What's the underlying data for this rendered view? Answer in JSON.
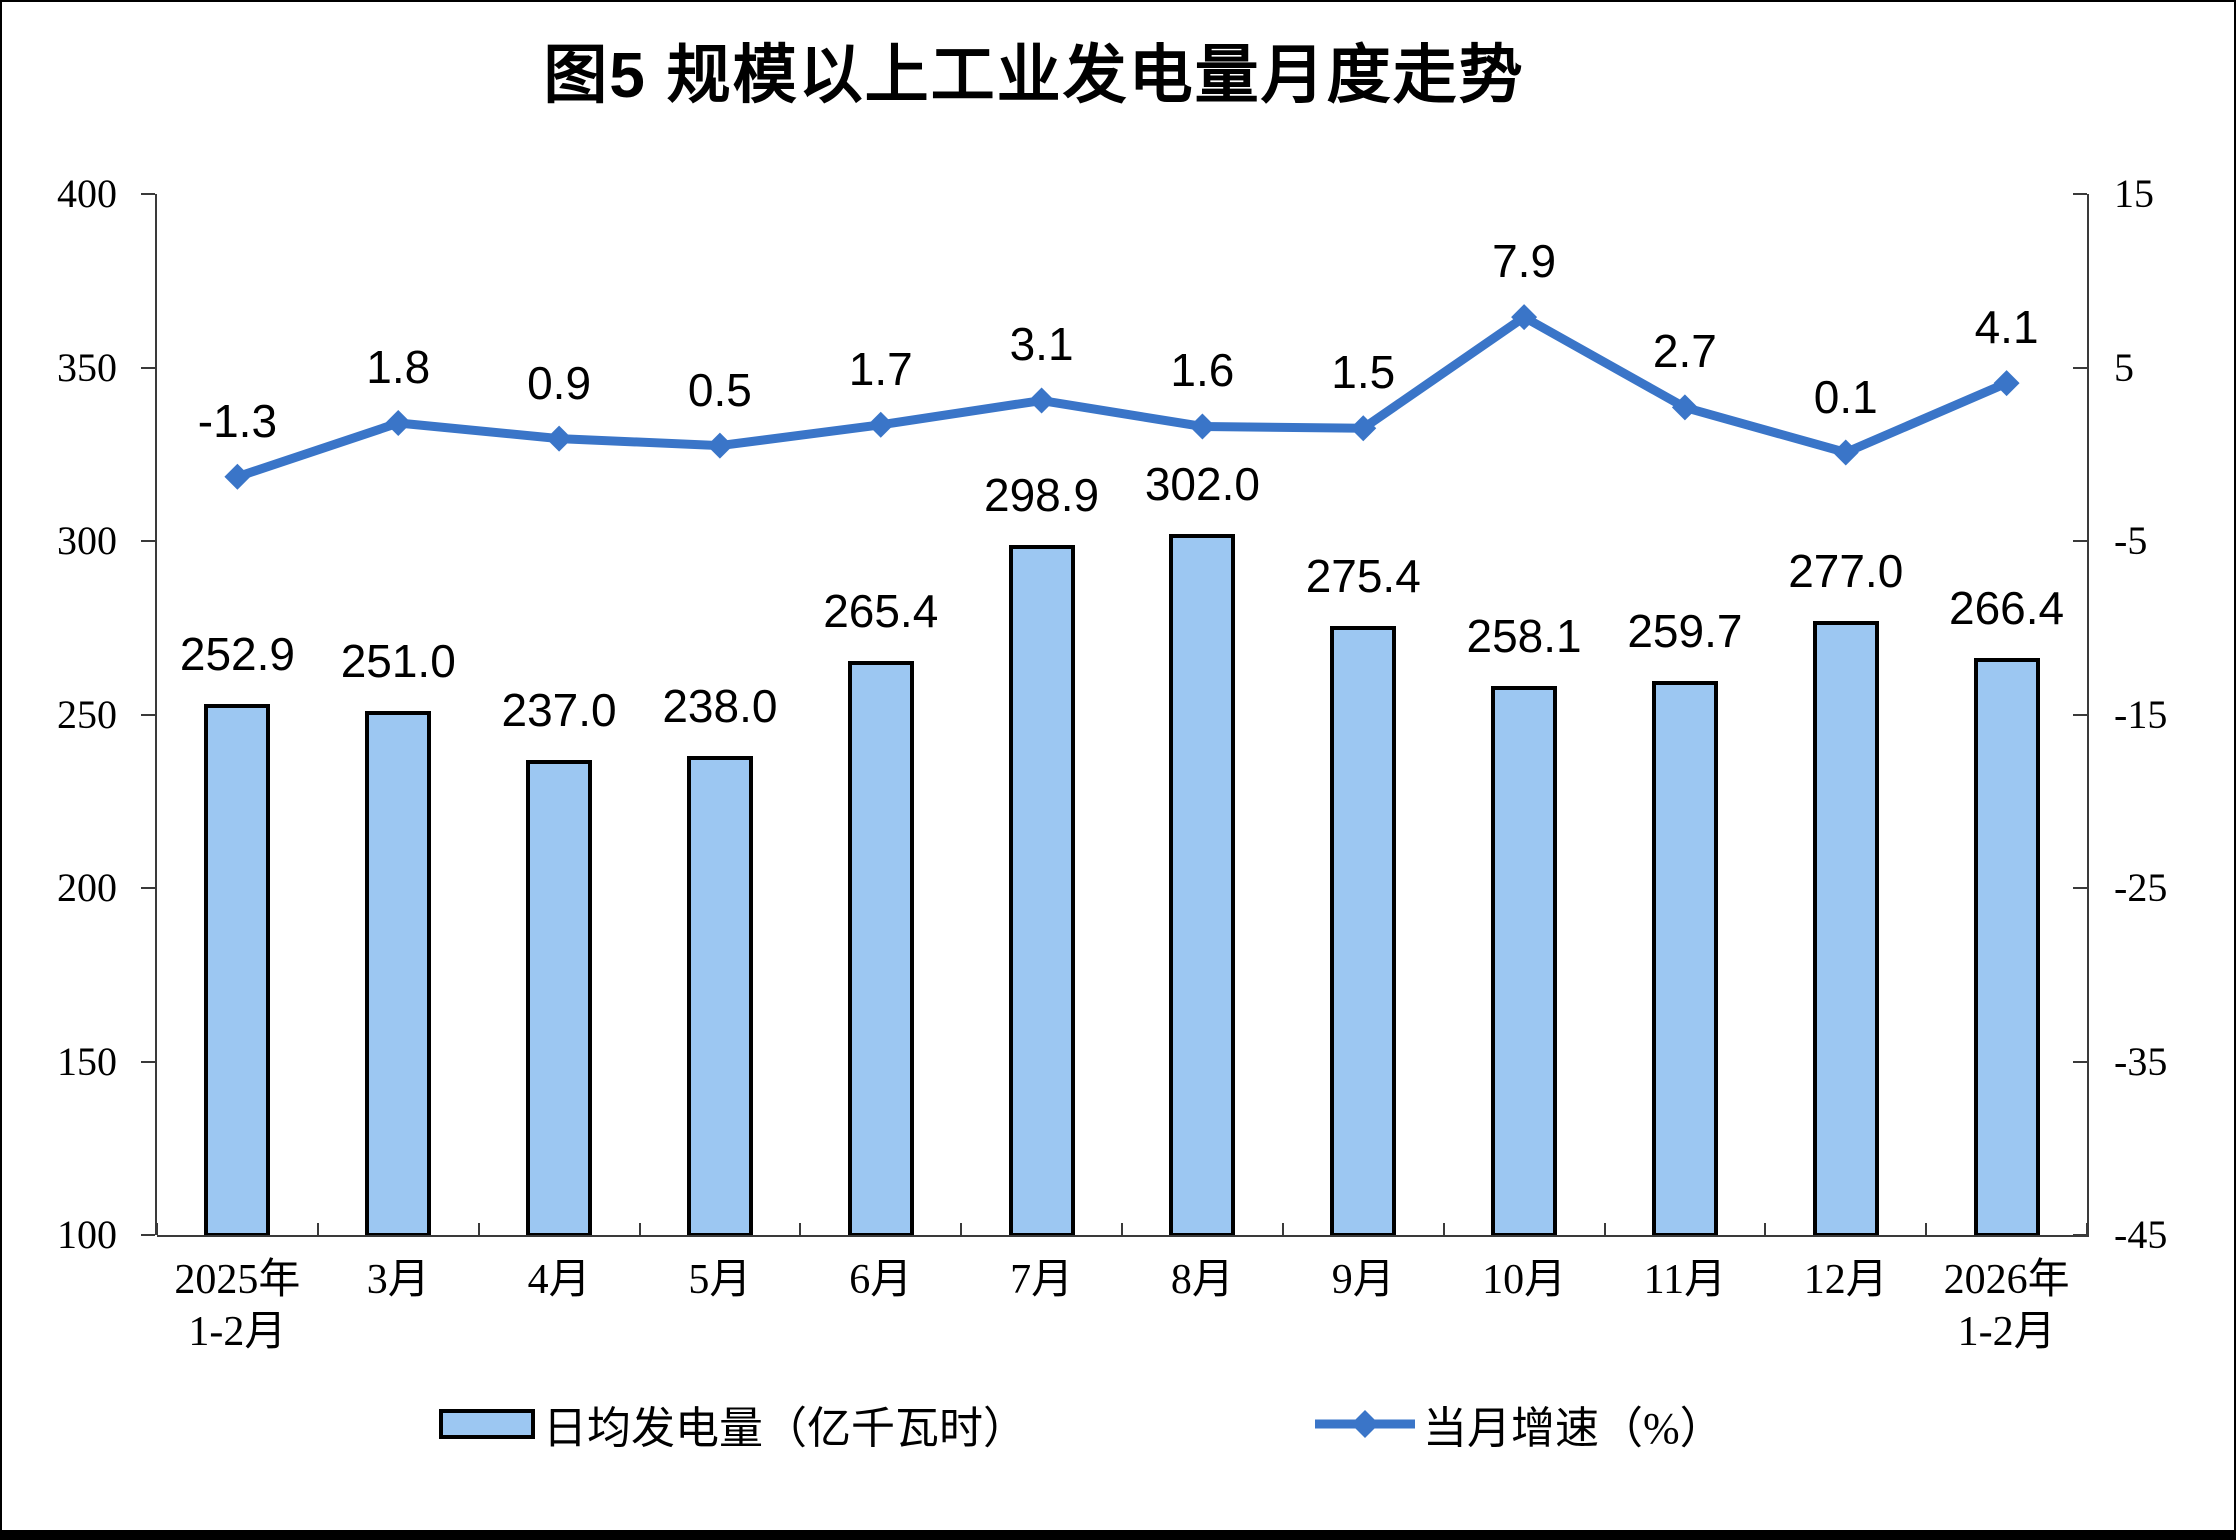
{
  "title": "图5  规模以上工业发电量月度走势",
  "chart_data": {
    "type": "bar+line",
    "categories": [
      "2025年\n1-2月",
      "3月",
      "4月",
      "5月",
      "6月",
      "7月",
      "8月",
      "9月",
      "10月",
      "11月",
      "12月",
      "2026年\n1-2月"
    ],
    "series": [
      {
        "name": "日均发电量（亿千瓦时）",
        "type": "bar",
        "axis": "left",
        "values": [
          252.9,
          251.0,
          237.0,
          238.0,
          265.4,
          298.9,
          302.0,
          275.4,
          258.1,
          259.7,
          277.0,
          266.4
        ],
        "fill": "#9CC7F2",
        "stroke": "#000000"
      },
      {
        "name": "当月增速（%）",
        "type": "line",
        "axis": "right",
        "marker": "diamond",
        "values": [
          -1.3,
          1.8,
          0.9,
          0.5,
          1.7,
          3.1,
          1.6,
          1.5,
          7.9,
          2.7,
          0.1,
          4.1
        ],
        "color": "#3A75C8"
      }
    ],
    "left_axis": {
      "min": 100,
      "max": 400,
      "step": 50
    },
    "right_axis": {
      "min": -45,
      "max": 15,
      "step": 10
    },
    "grid": false,
    "data_labels": true,
    "legend_position": "bottom"
  }
}
